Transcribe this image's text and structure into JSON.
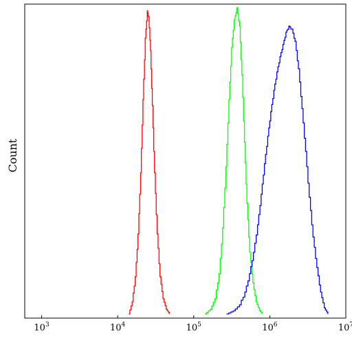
{
  "chart_data": {
    "type": "line",
    "title": "",
    "xlabel": "",
    "ylabel": "Count",
    "x_scale": "log",
    "xlim": [
      600,
      10000000
    ],
    "ylim": [
      0,
      1
    ],
    "grid": false,
    "legend": "none",
    "x_ticks": [
      {
        "value": 1000,
        "base": "10",
        "exp": "3"
      },
      {
        "value": 10000,
        "base": "10",
        "exp": "4"
      },
      {
        "value": 100000,
        "base": "10",
        "exp": "5"
      },
      {
        "value": 1000000,
        "base": "10",
        "exp": "6"
      },
      {
        "value": 10000000,
        "base": "10",
        "exp": "7"
      }
    ],
    "series": [
      {
        "color": "#ff0000",
        "x": [
          14000,
          15500,
          17000,
          18500,
          20000,
          21500,
          23000,
          24500,
          25500,
          27000,
          28500,
          30500,
          33000,
          36000,
          39500,
          43500,
          48000
        ],
        "y": [
          0.0,
          0.04,
          0.12,
          0.26,
          0.46,
          0.7,
          0.9,
          0.99,
          0.97,
          0.86,
          0.68,
          0.46,
          0.26,
          0.12,
          0.05,
          0.015,
          0.0
        ]
      },
      {
        "color": "#00ff00",
        "x": [
          140000,
          165000,
          190000,
          215000,
          240000,
          265000,
          290000,
          315000,
          340000,
          370000,
          400000,
          430000,
          465000,
          500000,
          545000,
          600000,
          660000,
          730000,
          800000
        ],
        "y": [
          0.0,
          0.015,
          0.05,
          0.13,
          0.28,
          0.48,
          0.7,
          0.87,
          0.96,
          1.0,
          0.94,
          0.78,
          0.56,
          0.36,
          0.2,
          0.1,
          0.04,
          0.012,
          0.0
        ]
      },
      {
        "color": "#0000ff",
        "x": [
          270000,
          330000,
          400000,
          470000,
          540000,
          610000,
          690000,
          770000,
          850000,
          940000,
          1030000,
          1130000,
          1240000,
          1360000,
          1490000,
          1630000,
          1780000,
          1950000,
          2150000,
          2380000,
          2650000,
          2950000,
          3300000,
          3700000,
          4150000,
          4650000,
          5200000,
          5800000
        ],
        "y": [
          0.0,
          0.01,
          0.03,
          0.07,
          0.13,
          0.2,
          0.29,
          0.39,
          0.49,
          0.58,
          0.66,
          0.73,
          0.79,
          0.84,
          0.88,
          0.92,
          0.94,
          0.93,
          0.89,
          0.8,
          0.67,
          0.53,
          0.38,
          0.25,
          0.15,
          0.07,
          0.02,
          0.0
        ]
      }
    ]
  }
}
